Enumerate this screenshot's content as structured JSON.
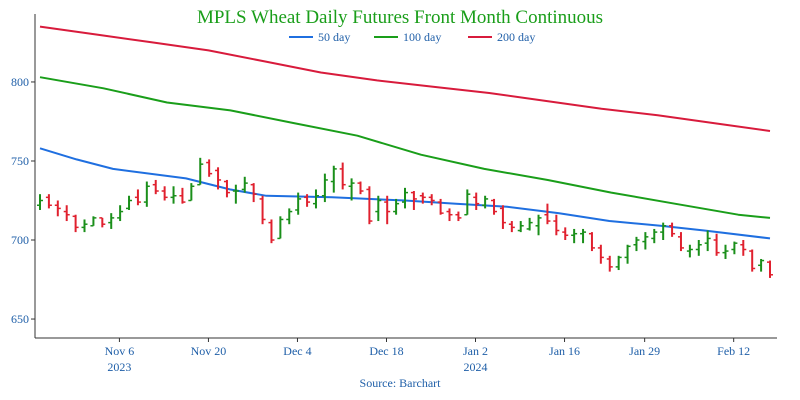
{
  "chart_data": {
    "type": "candlestick",
    "title": "MPLS Wheat Daily Futures Front Month Continuous",
    "source": "Source: Barchart",
    "xlabel": "",
    "ylabel": "",
    "ylim": [
      638,
      843
    ],
    "y_ticks": [
      650,
      700,
      750,
      800
    ],
    "x_ticks": [
      {
        "label": "Nov 6",
        "sub": "2023",
        "index": 6
      },
      {
        "label": "Nov 20",
        "sub": "",
        "index": 16
      },
      {
        "label": "Dec 4",
        "sub": "",
        "index": 26
      },
      {
        "label": "Dec 18",
        "sub": "",
        "index": 36
      },
      {
        "label": "Jan 2",
        "sub": "2024",
        "index": 46
      },
      {
        "label": "Jan 16",
        "sub": "",
        "index": 56
      },
      {
        "label": "Jan 29",
        "sub": "",
        "index": 65
      },
      {
        "label": "Feb 12",
        "sub": "",
        "index": 75
      }
    ],
    "colors": {
      "title": "#1a9e1a",
      "axis_text": "#1f5fa8",
      "up": "#1a8f1a",
      "down": "#e0202e",
      "ma50": "#1f6fe0",
      "ma100": "#1a9e1a",
      "ma200": "#d81b3c",
      "axis": "#333333"
    },
    "legend": [
      {
        "name": "50 day",
        "color": "#1f6fe0"
      },
      {
        "name": "100 day",
        "color": "#1a9e1a"
      },
      {
        "name": "200 day",
        "color": "#d81b3c"
      }
    ],
    "legend_position": "top-center",
    "grid": false,
    "n_bars": 83,
    "ohlc": [
      [
        722,
        729,
        719,
        725
      ],
      [
        727,
        729,
        720,
        722
      ],
      [
        722,
        725,
        715,
        720
      ],
      [
        718,
        722,
        712,
        716
      ],
      [
        715,
        716,
        705,
        708
      ],
      [
        708,
        713,
        705,
        710
      ],
      [
        709,
        715,
        709,
        714
      ],
      [
        714,
        714,
        708,
        710
      ],
      [
        711,
        717,
        707,
        714
      ],
      [
        714,
        722,
        712,
        718
      ],
      [
        720,
        728,
        719,
        725
      ],
      [
        727,
        732,
        722,
        724
      ],
      [
        724,
        737,
        721,
        734
      ],
      [
        735,
        738,
        729,
        731
      ],
      [
        731,
        734,
        725,
        727
      ],
      [
        727,
        734,
        723,
        728
      ],
      [
        728,
        733,
        723,
        724
      ],
      [
        725,
        736,
        725,
        734
      ],
      [
        735,
        752,
        735,
        748
      ],
      [
        749,
        751,
        740,
        742
      ],
      [
        744,
        746,
        732,
        738
      ],
      [
        737,
        738,
        727,
        730
      ],
      [
        731,
        735,
        723,
        731
      ],
      [
        732,
        740,
        730,
        736
      ],
      [
        735,
        736,
        724,
        729
      ],
      [
        726,
        728,
        710,
        713
      ],
      [
        711,
        713,
        698,
        700
      ],
      [
        701,
        715,
        701,
        713
      ],
      [
        713,
        720,
        710,
        718
      ],
      [
        719,
        730,
        716,
        726
      ],
      [
        727,
        729,
        721,
        724
      ],
      [
        723,
        732,
        720,
        728
      ],
      [
        728,
        742,
        724,
        738
      ],
      [
        737,
        747,
        730,
        745
      ],
      [
        745,
        749,
        732,
        735
      ],
      [
        734,
        739,
        725,
        736
      ],
      [
        736,
        737,
        729,
        731
      ],
      [
        732,
        734,
        710,
        712
      ],
      [
        718,
        728,
        712,
        725
      ],
      [
        724,
        728,
        710,
        718
      ],
      [
        718,
        726,
        716,
        723
      ],
      [
        724,
        733,
        720,
        730
      ],
      [
        730,
        731,
        719,
        726
      ],
      [
        728,
        730,
        723,
        727
      ],
      [
        727,
        729,
        722,
        725
      ],
      [
        724,
        726,
        716,
        717
      ],
      [
        718,
        720,
        712,
        716
      ],
      [
        716,
        718,
        712,
        714
      ],
      [
        716,
        732,
        716,
        729
      ],
      [
        727,
        730,
        719,
        723
      ],
      [
        722,
        728,
        720,
        726
      ],
      [
        725,
        726,
        716,
        718
      ],
      [
        720,
        722,
        707,
        711
      ],
      [
        710,
        712,
        705,
        708
      ],
      [
        706,
        712,
        705,
        709
      ],
      [
        707,
        714,
        706,
        711
      ],
      [
        709,
        716,
        703,
        714
      ],
      [
        716,
        723,
        710,
        712
      ],
      [
        712,
        716,
        703,
        706
      ],
      [
        705,
        708,
        700,
        703
      ],
      [
        703,
        707,
        698,
        704
      ],
      [
        704,
        707,
        698,
        705
      ],
      [
        704,
        705,
        693,
        695
      ],
      [
        695,
        697,
        685,
        689
      ],
      [
        688,
        690,
        680,
        683
      ],
      [
        683,
        690,
        681,
        689
      ],
      [
        689,
        697,
        685,
        696
      ],
      [
        697,
        702,
        693,
        700
      ],
      [
        699,
        705,
        694,
        702
      ],
      [
        701,
        707,
        698,
        705
      ],
      [
        705,
        711,
        700,
        709
      ],
      [
        709,
        711,
        702,
        704
      ],
      [
        702,
        705,
        693,
        695
      ],
      [
        693,
        697,
        689,
        694
      ],
      [
        694,
        700,
        690,
        697
      ],
      [
        698,
        706,
        693,
        701
      ],
      [
        700,
        704,
        690,
        692
      ],
      [
        692,
        697,
        688,
        693
      ],
      [
        694,
        699,
        691,
        698
      ],
      [
        697,
        700,
        690,
        694
      ],
      [
        693,
        694,
        680,
        682
      ],
      [
        684,
        688,
        680,
        687
      ],
      [
        686,
        687,
        676,
        678
      ]
    ],
    "series": [
      {
        "name": "50 day",
        "color": "#1f6fe0",
        "points": [
          [
            0,
            758
          ],
          [
            5,
            751
          ],
          [
            10,
            745
          ],
          [
            20,
            739
          ],
          [
            26,
            732
          ],
          [
            31,
            728
          ],
          [
            40,
            727
          ],
          [
            50,
            725
          ],
          [
            57,
            723
          ],
          [
            64,
            721
          ],
          [
            71,
            717
          ],
          [
            78,
            712
          ],
          [
            85,
            709
          ],
          [
            91,
            706
          ],
          [
            100,
            701
          ]
        ]
      },
      {
        "name": "100 day",
        "color": "#1a9e1a",
        "points": [
          [
            0,
            803
          ],
          [
            10,
            796
          ],
          [
            20,
            787
          ],
          [
            30,
            782
          ],
          [
            40,
            774
          ],
          [
            50,
            766
          ],
          [
            60,
            754
          ],
          [
            70,
            745
          ],
          [
            80,
            738
          ],
          [
            90,
            730
          ],
          [
            100,
            723
          ],
          [
            110,
            716
          ],
          [
            115,
            714
          ]
        ]
      },
      {
        "name": "200 day",
        "color": "#d81b3c",
        "points": [
          [
            0,
            835
          ],
          [
            10,
            830
          ],
          [
            20,
            825
          ],
          [
            30,
            820
          ],
          [
            40,
            813
          ],
          [
            50,
            806
          ],
          [
            60,
            801
          ],
          [
            70,
            797
          ],
          [
            80,
            793
          ],
          [
            90,
            788
          ],
          [
            100,
            783
          ],
          [
            110,
            779
          ],
          [
            120,
            774
          ],
          [
            130,
            769
          ]
        ]
      }
    ]
  }
}
